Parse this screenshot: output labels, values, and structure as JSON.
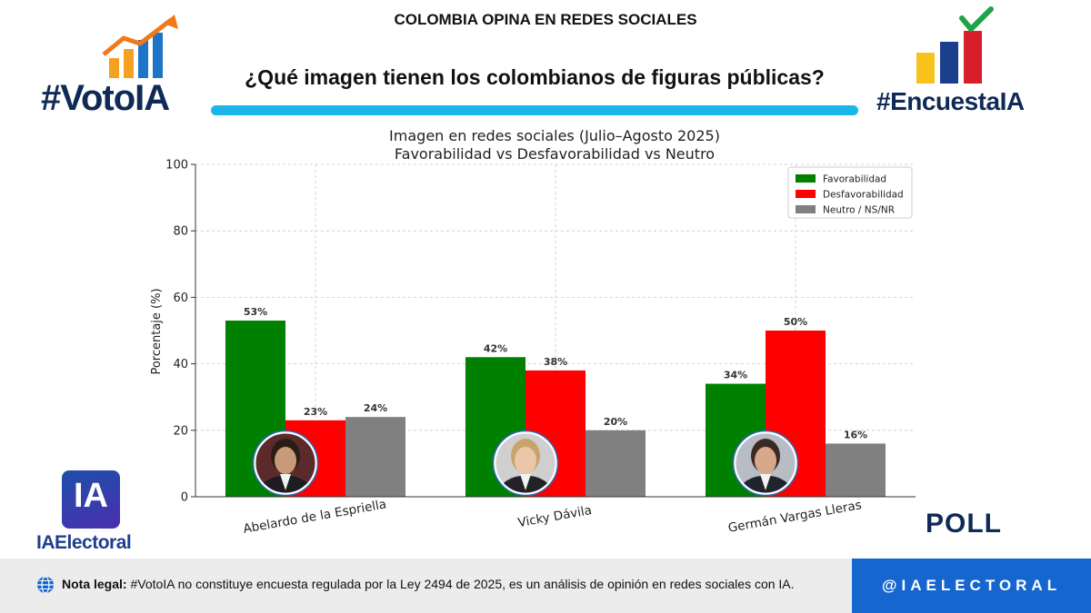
{
  "header": {
    "top_line": "COLOMBIA OPINA EN REDES SOCIALES",
    "question": "¿Qué imagen tienen los colombianos de figuras públicas?",
    "accent_color": "#1ab6ea"
  },
  "logos": {
    "left_brand": "#VotoIA",
    "right_brand": "#EncuestaIA",
    "ia_badge": "IA",
    "ia_electoral": "IAElectoral",
    "poll": "POLL"
  },
  "footer": {
    "legal_label": "Nota legal:",
    "legal_text": " #VotoIA no constituye encuesta regulada por la Ley 2494 de 2025, es un análisis de opinión en redes sociales con IA.",
    "handle": "@IAELECTORAL",
    "globe_icon": "globe-icon"
  },
  "chart_data": {
    "type": "bar",
    "title": "Imagen en redes sociales (Julio–Agosto 2025)",
    "subtitle": "Favorabilidad vs Desfavorabilidad vs Neutro",
    "ylabel": "Porcentaje (%)",
    "xlabel": "",
    "ylim": [
      0,
      100
    ],
    "yticks": [
      0,
      20,
      40,
      60,
      80,
      100
    ],
    "grid": true,
    "legend_position": "top-right",
    "categories": [
      "Abelardo de la Espriella",
      "Vicky Dávila",
      "Germán Vargas Lleras"
    ],
    "series": [
      {
        "name": "Favorabilidad",
        "color": "#008000",
        "values": [
          53,
          42,
          34
        ],
        "labels": [
          "53%",
          "42%",
          "34%"
        ]
      },
      {
        "name": "Desfavorabilidad",
        "color": "#ff0000",
        "values": [
          23,
          38,
          50
        ],
        "labels": [
          "23%",
          "38%",
          "50%"
        ]
      },
      {
        "name": "Neutro / NS/NR",
        "color": "#808080",
        "values": [
          24,
          20,
          16
        ],
        "labels": [
          "24%",
          "20%",
          "16%"
        ]
      }
    ]
  }
}
